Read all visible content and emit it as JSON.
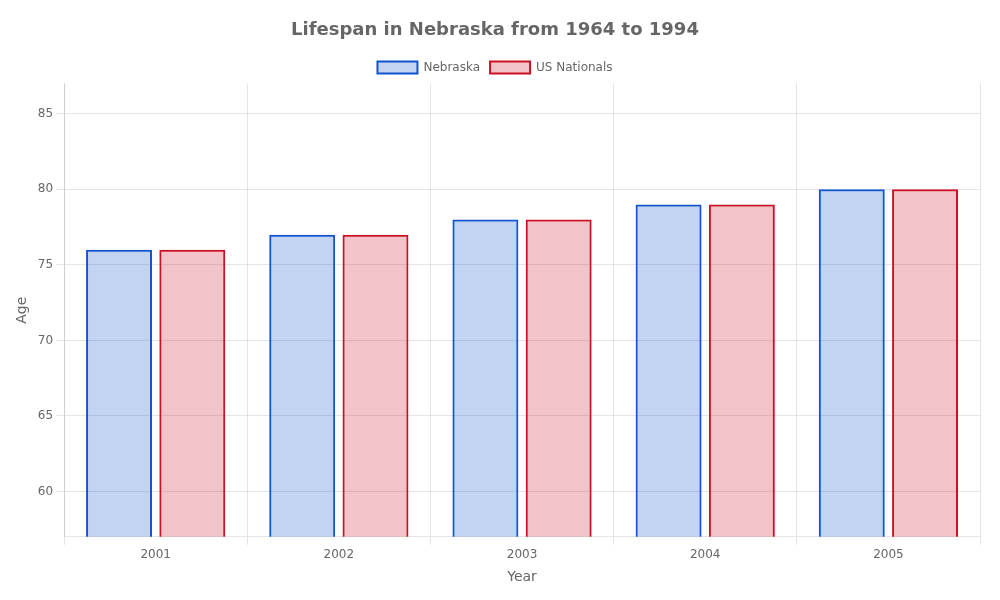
{
  "chart_data": {
    "type": "bar",
    "title": "Lifespan in Nebraska from 1964 to 1994",
    "xlabel": "Year",
    "ylabel": "Age",
    "categories": [
      "2001",
      "2002",
      "2003",
      "2004",
      "2005"
    ],
    "series": [
      {
        "name": "Nebraska",
        "color": "#1155cc",
        "values": [
          76,
          77,
          78,
          79,
          80
        ]
      },
      {
        "name": "US Nationals",
        "color": "#cc1122",
        "values": [
          76,
          77,
          78,
          79,
          80
        ]
      }
    ],
    "ylim": [
      57,
      87
    ],
    "yticks": [
      60,
      65,
      70,
      75,
      80,
      85
    ],
    "grid": true,
    "legend": "top"
  }
}
